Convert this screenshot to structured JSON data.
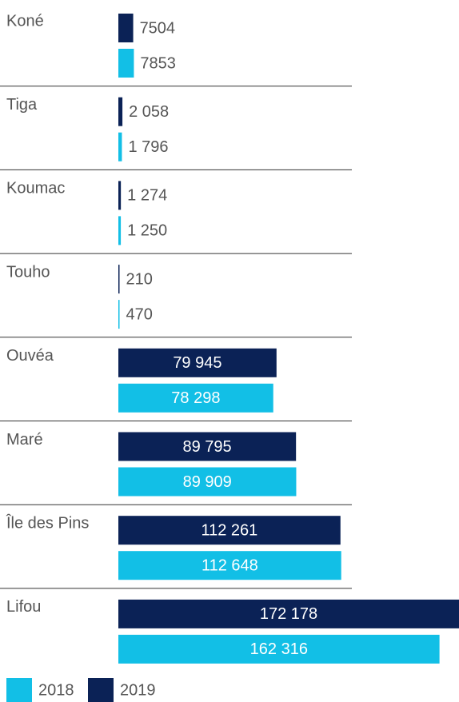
{
  "chart_data": {
    "type": "bar",
    "orientation": "horizontal",
    "categories": [
      "Koné",
      "Tiga",
      "Koumac",
      "Touho",
      "Ouvéa",
      "Maré",
      "Île des Pins",
      "Lifou"
    ],
    "series": [
      {
        "name": "2018",
        "color": "#12bfe6",
        "values": [
          7853,
          1796,
          1250,
          470,
          78298,
          89909,
          112648,
          162316
        ],
        "value_labels": [
          "7853",
          "1 796",
          "1 250",
          "470",
          "78 298",
          "89 909",
          "112 648",
          "162 316"
        ]
      },
      {
        "name": "2019",
        "color": "#0b2256",
        "values": [
          7504,
          2058,
          1274,
          210,
          79945,
          89795,
          112261,
          172178
        ],
        "value_labels": [
          "7504",
          "2 058",
          "1 274",
          "210",
          "79 945",
          "89 795",
          "112 261",
          "172 178"
        ]
      }
    ],
    "legend": "bottom-left"
  }
}
